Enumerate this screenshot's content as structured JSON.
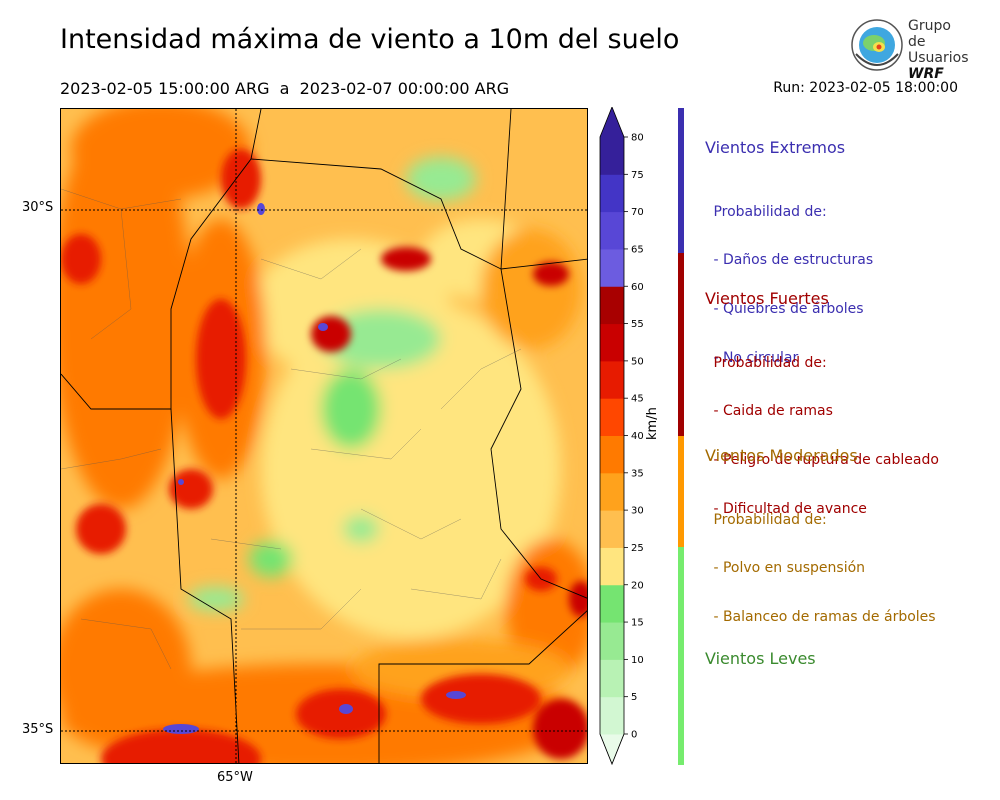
{
  "title": "Intensidad máxima de viento a 10m del suelo",
  "period": "2023-02-05 15:00:00 ARG  a  2023-02-07 00:00:00 ARG",
  "run": "Run: 2023-02-05 18:00:00",
  "logo": {
    "line1": "Grupo de",
    "line2": "Usuarios",
    "line3": "WRF",
    "icon": "globe-seal-icon"
  },
  "map": {
    "lat_labels": [
      "30°S",
      "35°S"
    ],
    "lon_labels": [
      "65°W"
    ],
    "description_fields": "wind-speed-shading"
  },
  "colorbar": {
    "unit": "km/h",
    "ticks": [
      "0",
      "5",
      "10",
      "15",
      "20",
      "25",
      "30",
      "35",
      "40",
      "45",
      "50",
      "55",
      "60",
      "65",
      "70",
      "75",
      "80"
    ],
    "colors": [
      "#e9fbe9",
      "#d2f7d2",
      "#b8f2b4",
      "#97ea92",
      "#75e471",
      "#ffe57f",
      "#ffbf4f",
      "#ffa21c",
      "#ff7a00",
      "#ff4700",
      "#e71b00",
      "#c90000",
      "#a80000",
      "#6c5ce0",
      "#5847d6",
      "#4335c6",
      "#35209a"
    ]
  },
  "legend": [
    {
      "heading": "Vientos Extremos",
      "color": "#3b2fb0",
      "lines": [
        " Probabilidad de:",
        " - Daños de estructuras",
        " - Quiebres de árboles",
        " - No circular"
      ]
    },
    {
      "heading": "Vientos Fuertes",
      "color": "#a00000",
      "lines": [
        " Probabilidad de:",
        " - Caida de ramas",
        " - Peligro de ruptura de cableado",
        " - Dificultad de avance"
      ]
    },
    {
      "heading": "Vientos Moderados",
      "color": "#a36a00",
      "lines": [
        " Probabilidad de:",
        " - Polvo en suspensión",
        " - Balanceo de ramas de árboles"
      ]
    },
    {
      "heading": "Vientos Leves",
      "color": "#3a8a2e",
      "lines": []
    }
  ],
  "legend_bar_colors": [
    "#3b2fb0",
    "#a00000",
    "#ff9900",
    "#76ec6e"
  ]
}
